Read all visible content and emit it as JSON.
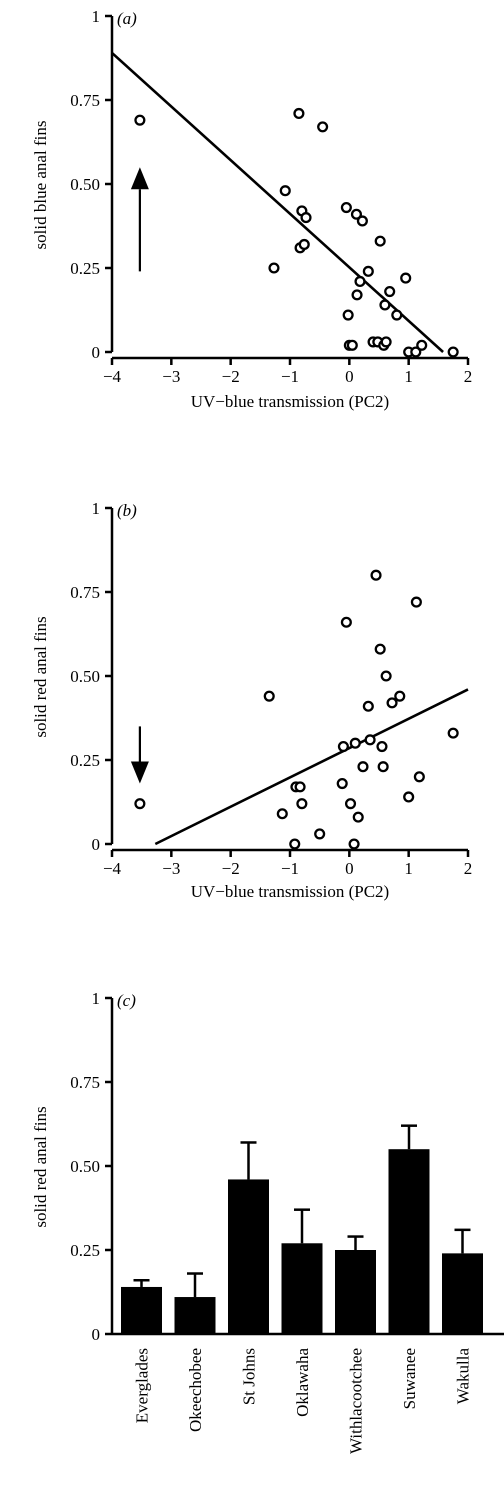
{
  "chart_data": [
    {
      "panel": "a",
      "panel_label": "(a)",
      "type": "scatter",
      "xlabel": "UV−blue transmission (PC2)",
      "ylabel": "solid blue anal fins",
      "xlim": [
        -4,
        2
      ],
      "ylim": [
        0,
        1
      ],
      "x_ticks": [
        -4,
        -3,
        -2,
        -1,
        0,
        1,
        2
      ],
      "x_tick_labels": [
        "−4",
        "−3",
        "−2",
        "−1",
        "0",
        "1",
        "2"
      ],
      "y_ticks": [
        0,
        0.25,
        0.5,
        0.75,
        1
      ],
      "y_tick_labels": [
        "0",
        "0.25",
        "0.50",
        "0.75",
        "1"
      ],
      "points": [
        {
          "x": -3.53,
          "y": 0.69
        },
        {
          "x": -1.27,
          "y": 0.25
        },
        {
          "x": -1.08,
          "y": 0.48
        },
        {
          "x": -0.85,
          "y": 0.71
        },
        {
          "x": -0.83,
          "y": 0.31
        },
        {
          "x": -0.8,
          "y": 0.42
        },
        {
          "x": -0.76,
          "y": 0.32
        },
        {
          "x": -0.73,
          "y": 0.4
        },
        {
          "x": -0.45,
          "y": 0.67
        },
        {
          "x": -0.05,
          "y": 0.43
        },
        {
          "x": -0.02,
          "y": 0.11
        },
        {
          "x": 0.0,
          "y": 0.02
        },
        {
          "x": 0.05,
          "y": 0.02
        },
        {
          "x": 0.12,
          "y": 0.41
        },
        {
          "x": 0.13,
          "y": 0.17
        },
        {
          "x": 0.18,
          "y": 0.21
        },
        {
          "x": 0.22,
          "y": 0.39
        },
        {
          "x": 0.32,
          "y": 0.24
        },
        {
          "x": 0.4,
          "y": 0.03
        },
        {
          "x": 0.48,
          "y": 0.03
        },
        {
          "x": 0.52,
          "y": 0.33
        },
        {
          "x": 0.58,
          "y": 0.02
        },
        {
          "x": 0.6,
          "y": 0.14
        },
        {
          "x": 0.62,
          "y": 0.03
        },
        {
          "x": 0.68,
          "y": 0.18
        },
        {
          "x": 0.8,
          "y": 0.11
        },
        {
          "x": 0.95,
          "y": 0.22
        },
        {
          "x": 1.0,
          "y": 0.0
        },
        {
          "x": 1.12,
          "y": 0.0
        },
        {
          "x": 1.22,
          "y": 0.02
        },
        {
          "x": 1.75,
          "y": 0.0
        }
      ],
      "fit_line": [
        {
          "x": -4,
          "y": 0.89
        },
        {
          "x": 1.58,
          "y": 0
        }
      ],
      "arrow": {
        "x": -3.53,
        "y_from": 0.24,
        "y_to": 0.55,
        "direction": "up"
      }
    },
    {
      "panel": "b",
      "panel_label": "(b)",
      "type": "scatter",
      "xlabel": "UV−blue transmission (PC2)",
      "ylabel": "solid red anal fins",
      "xlim": [
        -4,
        2
      ],
      "ylim": [
        0,
        1
      ],
      "x_ticks": [
        -4,
        -3,
        -2,
        -1,
        0,
        1,
        2
      ],
      "x_tick_labels": [
        "−4",
        "−3",
        "−2",
        "−1",
        "0",
        "1",
        "2"
      ],
      "y_ticks": [
        0,
        0.25,
        0.5,
        0.75,
        1
      ],
      "y_tick_labels": [
        "0",
        "0.25",
        "0.50",
        "0.75",
        "1"
      ],
      "points": [
        {
          "x": -3.53,
          "y": 0.12
        },
        {
          "x": -1.35,
          "y": 0.44
        },
        {
          "x": -1.13,
          "y": 0.09
        },
        {
          "x": -0.92,
          "y": 0.0
        },
        {
          "x": -0.9,
          "y": 0.17
        },
        {
          "x": -0.83,
          "y": 0.17
        },
        {
          "x": -0.8,
          "y": 0.12
        },
        {
          "x": -0.5,
          "y": 0.03
        },
        {
          "x": -0.12,
          "y": 0.18
        },
        {
          "x": -0.1,
          "y": 0.29
        },
        {
          "x": -0.05,
          "y": 0.66
        },
        {
          "x": 0.02,
          "y": 0.12
        },
        {
          "x": 0.08,
          "y": 0.0
        },
        {
          "x": 0.1,
          "y": 0.3
        },
        {
          "x": 0.15,
          "y": 0.08
        },
        {
          "x": 0.23,
          "y": 0.23
        },
        {
          "x": 0.32,
          "y": 0.41
        },
        {
          "x": 0.35,
          "y": 0.31
        },
        {
          "x": 0.45,
          "y": 0.8
        },
        {
          "x": 0.52,
          "y": 0.58
        },
        {
          "x": 0.55,
          "y": 0.29
        },
        {
          "x": 0.57,
          "y": 0.23
        },
        {
          "x": 0.62,
          "y": 0.5
        },
        {
          "x": 0.72,
          "y": 0.42
        },
        {
          "x": 0.85,
          "y": 0.44
        },
        {
          "x": 1.0,
          "y": 0.14
        },
        {
          "x": 1.13,
          "y": 0.72
        },
        {
          "x": 1.18,
          "y": 0.2
        },
        {
          "x": 1.75,
          "y": 0.33
        }
      ],
      "fit_line": [
        {
          "x": -3.27,
          "y": 0
        },
        {
          "x": 2,
          "y": 0.46
        }
      ],
      "arrow": {
        "x": -3.53,
        "y_from": 0.35,
        "y_to": 0.18,
        "direction": "down"
      }
    },
    {
      "panel": "c",
      "panel_label": "(c)",
      "type": "bar",
      "ylabel": "solid red anal fins",
      "ylim": [
        0,
        1
      ],
      "y_ticks": [
        0,
        0.25,
        0.5,
        0.75,
        1
      ],
      "y_tick_labels": [
        "0",
        "0.25",
        "0.50",
        "0.75",
        "1"
      ],
      "categories": [
        "Everglades",
        "Okeechobee",
        "St Johns",
        "Oklawaha",
        "Withlacootchee",
        "Suwanee",
        "Wakulla"
      ],
      "values": [
        0.14,
        0.11,
        0.46,
        0.27,
        0.25,
        0.55,
        0.24
      ],
      "error_upper": [
        0.16,
        0.18,
        0.57,
        0.37,
        0.29,
        0.62,
        0.31
      ]
    }
  ],
  "colors": {
    "ink": "#000000",
    "background": "#ffffff"
  }
}
